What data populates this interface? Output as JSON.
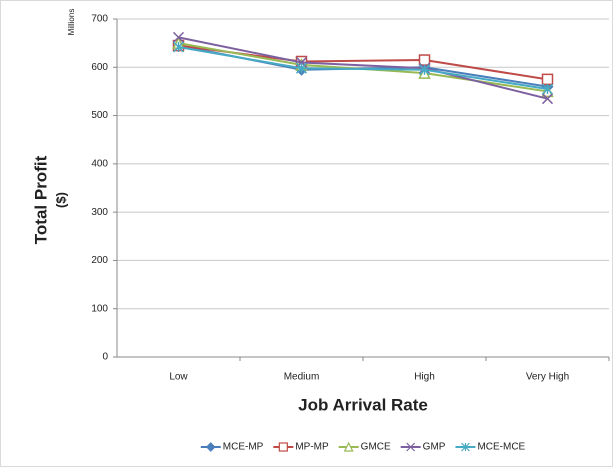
{
  "chart_data": {
    "type": "line",
    "y_label": "Total Profit",
    "y_label_unit": "($)",
    "y_scale_note": "Millions",
    "x_label": "Job Arrival Rate",
    "categories": [
      "Low",
      "Medium",
      "High",
      "Very High"
    ],
    "series": [
      {
        "name": "MCE-MP",
        "color": "#4a7ebb",
        "marker": "diamond",
        "values": [
          645,
          595,
          600,
          560
        ]
      },
      {
        "name": "MP-MP",
        "color": "#be4b48",
        "marker": "square",
        "values": [
          645,
          612,
          615,
          575
        ]
      },
      {
        "name": "GMCE",
        "color": "#98b954",
        "marker": "triangle",
        "values": [
          650,
          605,
          588,
          550
        ]
      },
      {
        "name": "GMP",
        "color": "#7d60a0",
        "marker": "x",
        "values": [
          662,
          610,
          598,
          535
        ]
      },
      {
        "name": "MCE-MCE",
        "color": "#46aac5",
        "marker": "star",
        "values": [
          642,
          598,
          595,
          555
        ]
      }
    ],
    "ylim": [
      0,
      700
    ],
    "yticks": [
      0,
      100,
      200,
      300,
      400,
      500,
      600,
      700
    ],
    "grid": true,
    "legend": "bottom"
  }
}
